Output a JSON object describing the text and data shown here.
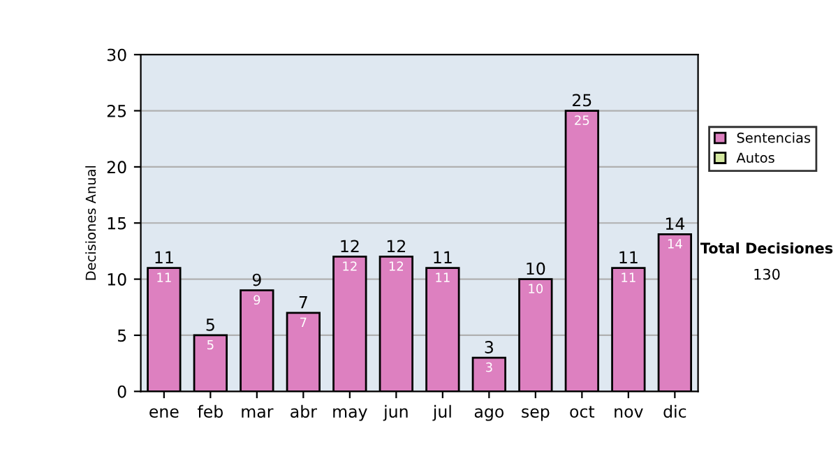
{
  "chart_data": {
    "type": "bar",
    "ylabel": "Decisiones Anual",
    "categories": [
      "ene",
      "feb",
      "mar",
      "abr",
      "may",
      "jun",
      "jul",
      "ago",
      "sep",
      "oct",
      "nov",
      "dic"
    ],
    "series": [
      {
        "name": "Sentencias",
        "color": "#dd80c0",
        "values": [
          11,
          5,
          9,
          7,
          12,
          12,
          11,
          3,
          10,
          25,
          11,
          14
        ],
        "value_labels": [
          "11",
          "5",
          "9",
          "7",
          "12",
          "12",
          "11",
          "3",
          "10",
          "25",
          "11",
          "14"
        ]
      },
      {
        "name": "Autos",
        "color": "#d4e8a0",
        "values": [
          null,
          null,
          null,
          null,
          null,
          null,
          null,
          null,
          null,
          null,
          null,
          null
        ]
      }
    ],
    "ylim": [
      0,
      30
    ],
    "yticks": [
      0,
      5,
      10,
      15,
      20,
      25,
      30
    ],
    "grid": "y",
    "legend": "right",
    "totals": [
      "11",
      "5",
      "9",
      "7",
      "12",
      "12",
      "11",
      "3",
      "10",
      "25",
      "11",
      "14"
    ],
    "annotations": [
      "Total Decisiones",
      "130"
    ]
  }
}
